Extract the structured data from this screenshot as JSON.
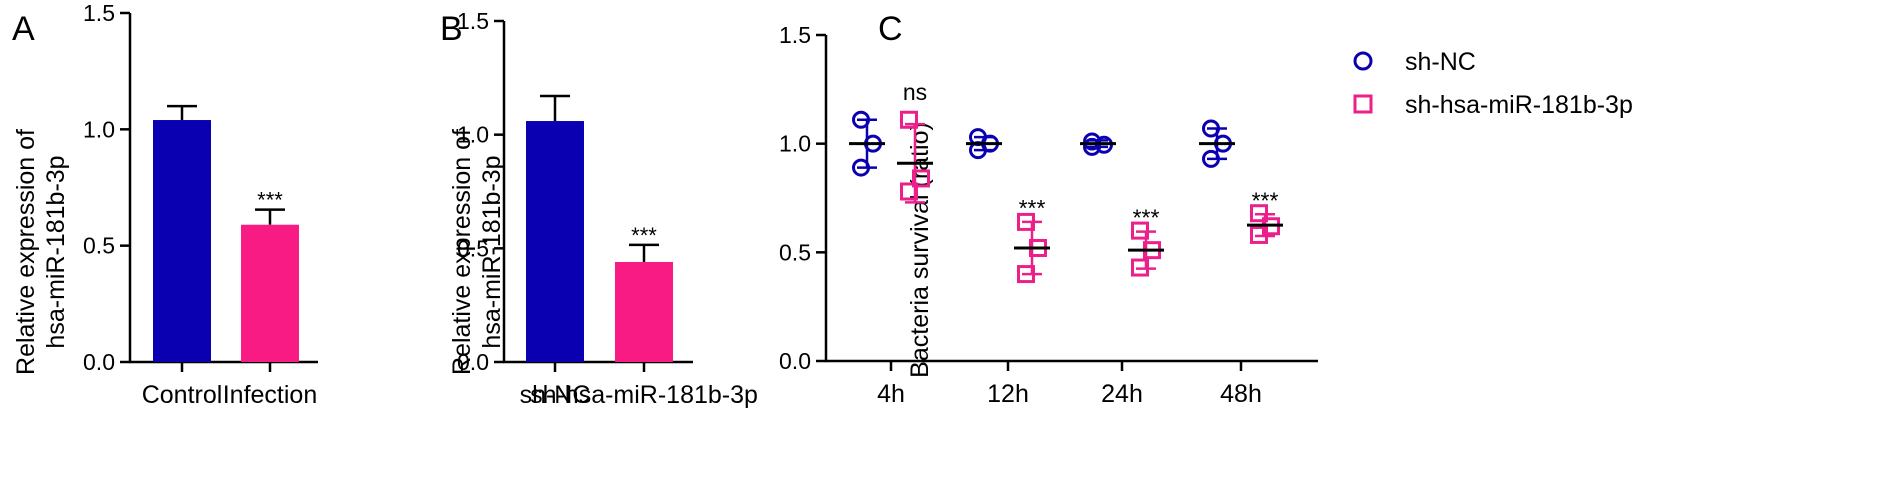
{
  "chart_data": [
    {
      "panel": "A",
      "type": "bar",
      "ylabel_lines": [
        "Relative expression of",
        "hsa-miR-181b-3p"
      ],
      "ylim": [
        0,
        1.5
      ],
      "yticks": [
        "0.0",
        "0.5",
        "1.0",
        "1.5"
      ],
      "categories": [
        "Control",
        "Infection"
      ],
      "values": [
        1.04,
        0.59
      ],
      "errors": [
        0.06,
        0.065
      ],
      "colors": [
        "#0a00b2",
        "#f91b84"
      ],
      "annotations": [
        "",
        "***"
      ]
    },
    {
      "panel": "B",
      "type": "bar",
      "ylabel_lines": [
        "Relative expression of",
        "hsa-miR-181b-3p"
      ],
      "ylim": [
        0,
        1.5
      ],
      "yticks": [
        "0.0",
        "0.5",
        "1.0",
        "1.5"
      ],
      "categories": [
        "sh-NC",
        "sh-hsa-miR-181b-3p"
      ],
      "values": [
        1.06,
        0.44
      ],
      "errors": [
        0.11,
        0.075
      ],
      "colors": [
        "#0a00b2",
        "#f91b84"
      ],
      "annotations": [
        "",
        "***"
      ]
    },
    {
      "panel": "C",
      "type": "scatter",
      "ylabel": "Bacteria survival (ratio)",
      "ylim": [
        0,
        1.5
      ],
      "yticks": [
        "0.0",
        "0.5",
        "1.0",
        "1.5"
      ],
      "categories": [
        "4h",
        "12h",
        "24h",
        "48h"
      ],
      "series": [
        {
          "name": "sh-NC",
          "marker": "circle",
          "color": "#0a00b2",
          "points": [
            [
              1.11,
              1.0,
              0.89
            ],
            [
              1.03,
              1.0,
              0.97
            ],
            [
              1.01,
              0.995,
              0.985
            ],
            [
              1.07,
              1.0,
              0.93
            ]
          ],
          "means": [
            1.0,
            1.0,
            1.0,
            1.0
          ],
          "errors": [
            0.11,
            0.03,
            0.015,
            0.07
          ]
        },
        {
          "name": "sh-hsa-miR-181b-3p",
          "marker": "square",
          "color": "#ed1f8a",
          "points": [
            [
              1.11,
              0.84,
              0.78
            ],
            [
              0.64,
              0.52,
              0.4
            ],
            [
              0.6,
              0.51,
              0.43
            ],
            [
              0.68,
              0.62,
              0.58
            ]
          ],
          "means": [
            0.91,
            0.52,
            0.51,
            0.625
          ],
          "errors": [
            0.18,
            0.12,
            0.085,
            0.05
          ]
        }
      ],
      "annotations": [
        "ns",
        "***",
        "***",
        "***"
      ]
    }
  ],
  "panel_labels": [
    "A",
    "B",
    "C"
  ]
}
